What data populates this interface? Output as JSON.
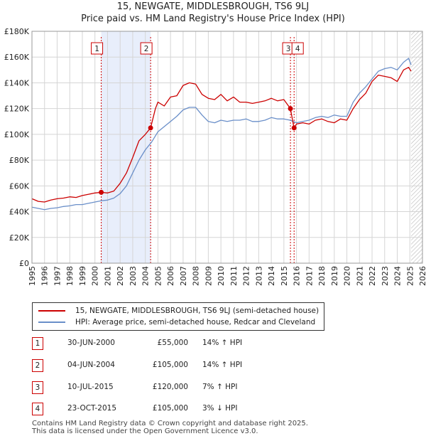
{
  "title": "15, NEWGATE, MIDDLESBROUGH, TS6 9LJ",
  "subtitle": "Price paid vs. HM Land Registry's House Price Index (HPI)",
  "legend": {
    "property": "15, NEWGATE, MIDDLESBROUGH, TS6 9LJ (semi-detached house)",
    "hpi": "HPI: Average price, semi-detached house, Redcar and Cleveland"
  },
  "colors": {
    "property": "#cc0000",
    "hpi": "#6a8fc9",
    "highlight": "#e8eefb",
    "grid": "#d5d5d5",
    "marker_border": "#cc0000"
  },
  "transactions": [
    {
      "num": "1",
      "date": "30-JUN-2000",
      "price": "£55,000",
      "hpi": "14% ↑ HPI"
    },
    {
      "num": "2",
      "date": "04-JUN-2004",
      "price": "£105,000",
      "hpi": "14% ↑ HPI"
    },
    {
      "num": "3",
      "date": "10-JUL-2015",
      "price": "£120,000",
      "hpi": "7% ↑ HPI"
    },
    {
      "num": "4",
      "date": "23-OCT-2015",
      "price": "£105,000",
      "hpi": "3% ↓ HPI"
    }
  ],
  "footer": {
    "line1": "Contains HM Land Registry data © Crown copyright and database right 2025.",
    "line2": "This data is licensed under the Open Government Licence v3.0."
  },
  "chart_data": {
    "type": "line",
    "title": "15, NEWGATE, MIDDLESBROUGH, TS6 9LJ",
    "subtitle": "Price paid vs. HM Land Registry's House Price Index (HPI)",
    "xlabel": "",
    "ylabel": "",
    "xlim": [
      1995,
      2026
    ],
    "ylim": [
      0,
      180000
    ],
    "y_ticks": [
      0,
      20000,
      40000,
      60000,
      80000,
      100000,
      120000,
      140000,
      160000,
      180000
    ],
    "y_tick_labels": [
      "£0",
      "£20K",
      "£40K",
      "£60K",
      "£80K",
      "£100K",
      "£120K",
      "£140K",
      "£160K",
      "£180K"
    ],
    "x_ticks": [
      1995,
      1996,
      1997,
      1998,
      1999,
      2000,
      2001,
      2002,
      2003,
      2004,
      2005,
      2006,
      2007,
      2008,
      2009,
      2010,
      2011,
      2012,
      2013,
      2014,
      2015,
      2016,
      2017,
      2018,
      2019,
      2020,
      2021,
      2022,
      2023,
      2024,
      2025,
      2026
    ],
    "highlight_span": [
      2000.5,
      2004.42
    ],
    "forecast_from": 2025.1,
    "series": [
      {
        "name": "15, NEWGATE, MIDDLESBROUGH, TS6 9LJ (semi-detached house)",
        "x": [
          1995.0,
          1995.5,
          1996.0,
          1996.5,
          1997.0,
          1997.5,
          1998.0,
          1998.5,
          1999.0,
          1999.5,
          2000.0,
          2000.5,
          2001.0,
          2001.5,
          2002.0,
          2002.5,
          2003.0,
          2003.5,
          2004.0,
          2004.42,
          2004.8,
          2005.0,
          2005.5,
          2006.0,
          2006.5,
          2007.0,
          2007.5,
          2008.0,
          2008.5,
          2009.0,
          2009.5,
          2010.0,
          2010.5,
          2011.0,
          2011.5,
          2012.0,
          2012.5,
          2013.0,
          2013.5,
          2014.0,
          2014.5,
          2015.0,
          2015.52,
          2015.8,
          2016.0,
          2016.5,
          2017.0,
          2017.5,
          2018.0,
          2018.5,
          2019.0,
          2019.5,
          2020.0,
          2020.5,
          2021.0,
          2021.5,
          2022.0,
          2022.5,
          2023.0,
          2023.5,
          2024.0,
          2024.5,
          2024.9,
          2025.1
        ],
        "values": [
          50000,
          48000,
          47500,
          49000,
          50000,
          50500,
          51500,
          51000,
          52500,
          53500,
          54500,
          55000,
          54500,
          56000,
          62000,
          70000,
          82000,
          95000,
          100000,
          105000,
          120000,
          125000,
          122000,
          129000,
          130000,
          138000,
          140000,
          139000,
          131000,
          128000,
          127000,
          131000,
          126000,
          129000,
          125000,
          125000,
          124000,
          125000,
          126000,
          128000,
          126000,
          127000,
          120000,
          105000,
          108000,
          109000,
          108000,
          111000,
          112000,
          110000,
          109000,
          112000,
          111000,
          120000,
          127000,
          132000,
          141000,
          146000,
          145000,
          144000,
          141000,
          150000,
          152000,
          149000
        ]
      },
      {
        "name": "HPI: Average price, semi-detached house, Redcar and Cleveland",
        "x": [
          1995.0,
          1995.5,
          1996.0,
          1996.5,
          1997.0,
          1997.5,
          1998.0,
          1998.5,
          1999.0,
          1999.5,
          2000.0,
          2000.5,
          2001.0,
          2001.5,
          2002.0,
          2002.5,
          2003.0,
          2003.5,
          2004.0,
          2004.5,
          2005.0,
          2005.5,
          2006.0,
          2006.5,
          2007.0,
          2007.5,
          2008.0,
          2008.5,
          2009.0,
          2009.5,
          2010.0,
          2010.5,
          2011.0,
          2011.5,
          2012.0,
          2012.5,
          2013.0,
          2013.5,
          2014.0,
          2014.5,
          2015.0,
          2015.5,
          2016.0,
          2016.5,
          2017.0,
          2017.5,
          2018.0,
          2018.5,
          2019.0,
          2019.5,
          2020.0,
          2020.5,
          2021.0,
          2021.5,
          2022.0,
          2022.5,
          2023.0,
          2023.5,
          2024.0,
          2024.5,
          2024.9,
          2025.1
        ],
        "values": [
          43500,
          42500,
          41500,
          42500,
          43000,
          44000,
          44500,
          45500,
          45500,
          46500,
          47500,
          48500,
          49000,
          50500,
          54000,
          60000,
          70000,
          80000,
          88000,
          94000,
          102000,
          106000,
          110000,
          114000,
          119000,
          121000,
          121000,
          115000,
          110000,
          109000,
          111000,
          110000,
          111000,
          111000,
          112000,
          110000,
          110000,
          111000,
          113000,
          112000,
          112000,
          111000,
          109000,
          110000,
          111000,
          113000,
          114000,
          113000,
          115000,
          114000,
          114000,
          125000,
          132000,
          137000,
          143000,
          149000,
          151000,
          152000,
          150000,
          156000,
          159000,
          154000
        ]
      }
    ],
    "markers": [
      {
        "label": "1",
        "x": 2000.5,
        "y": 55000
      },
      {
        "label": "2",
        "x": 2004.42,
        "y": 105000
      },
      {
        "label": "3",
        "x": 2015.52,
        "y": 120000
      },
      {
        "label": "4",
        "x": 2015.81,
        "y": 105000
      }
    ],
    "legend_position": "bottom-left"
  }
}
